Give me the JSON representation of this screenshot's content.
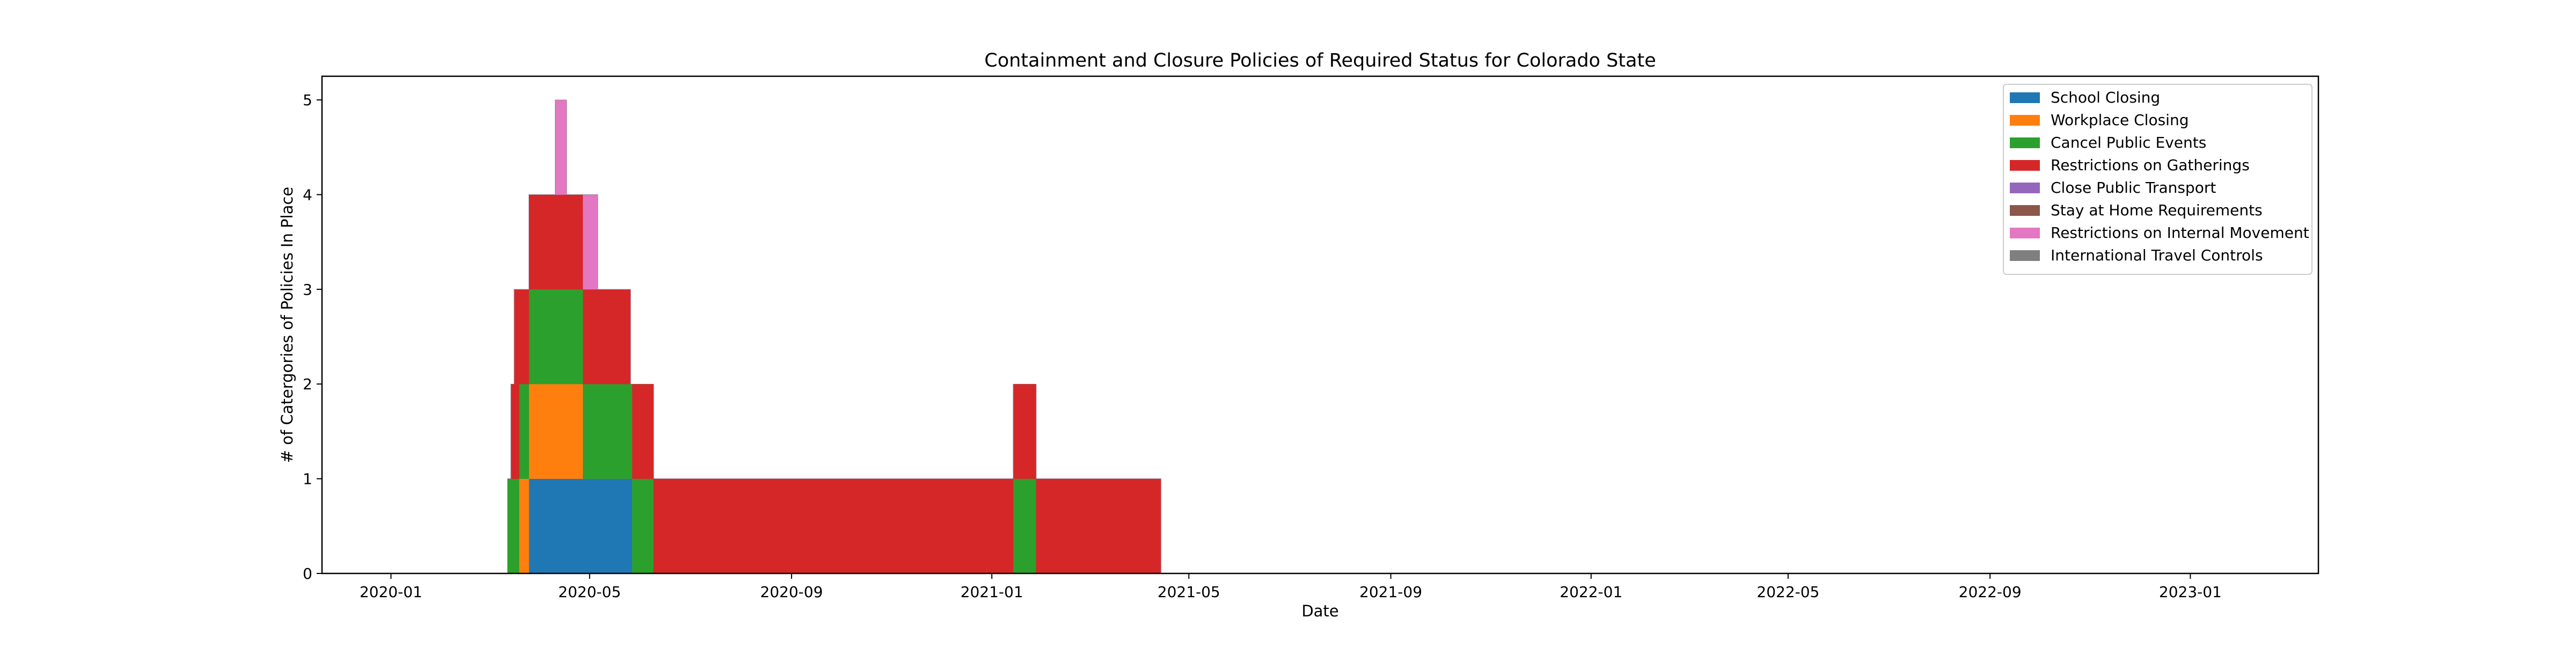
{
  "chart_data": {
    "type": "area",
    "stacked": true,
    "step": true,
    "title": "Containment and Closure Policies of Required Status for Colorado State",
    "xlabel": "Date",
    "ylabel": "# of Catergories of Policies In Place",
    "xlim": [
      "2019-11-20",
      "2023-03-20"
    ],
    "ylim": [
      0,
      5.25
    ],
    "x_ticks": [
      "2020-01",
      "2020-05",
      "2020-09",
      "2021-01",
      "2021-05",
      "2021-09",
      "2022-01",
      "2022-05",
      "2022-09",
      "2023-01"
    ],
    "y_ticks": [
      0,
      1,
      2,
      3,
      4,
      5
    ],
    "grid": false,
    "legend_position": "top-right",
    "x": [
      "2020-03-12",
      "2020-03-14",
      "2020-03-16",
      "2020-03-19",
      "2020-03-25",
      "2020-04-10",
      "2020-04-17",
      "2020-04-27",
      "2020-05-06",
      "2020-05-26",
      "2020-05-27",
      "2020-06-09",
      "2020-06-16",
      "2021-01-14",
      "2021-01-28",
      "2021-04-14",
      "2023-03-20"
    ],
    "series": [
      {
        "name": "School Closing",
        "color": "#1f77b4",
        "values": [
          0,
          0,
          0,
          0,
          1,
          1,
          1,
          1,
          1,
          1,
          0,
          0,
          0,
          0,
          0,
          0,
          0
        ]
      },
      {
        "name": "Workplace Closing",
        "color": "#ff7f0e",
        "values": [
          0,
          0,
          0,
          1,
          1,
          1,
          1,
          0,
          0,
          0,
          0,
          0,
          0,
          0,
          0,
          0,
          0
        ]
      },
      {
        "name": "Cancel Public Events",
        "color": "#2ca02c",
        "values": [
          1,
          1,
          1,
          1,
          1,
          1,
          1,
          1,
          1,
          1,
          1,
          0,
          0,
          1,
          0,
          0,
          0
        ]
      },
      {
        "name": "Restrictions on Gatherings",
        "color": "#d62728",
        "values": [
          0,
          1,
          2,
          1,
          1,
          1,
          1,
          1,
          1,
          0,
          1,
          1,
          1,
          1,
          1,
          0,
          0
        ]
      },
      {
        "name": "Close Public Transport",
        "color": "#9467bd",
        "values": [
          0,
          0,
          0,
          0,
          0,
          0,
          0,
          0,
          0,
          0,
          0,
          0,
          0,
          0,
          0,
          0,
          0
        ]
      },
      {
        "name": "Stay at Home Requirements",
        "color": "#8c564b",
        "values": [
          0,
          0,
          0,
          0,
          0,
          0,
          0,
          0,
          0,
          0,
          0,
          0,
          0,
          0,
          0,
          0,
          0
        ]
      },
      {
        "name": "Restrictions on Internal Movement",
        "color": "#e377c2",
        "values": [
          0,
          0,
          0,
          0,
          0,
          1,
          0,
          1,
          0,
          0,
          0,
          0,
          0,
          0,
          0,
          0,
          0
        ]
      },
      {
        "name": "International Travel Controls",
        "color": "#7f7f7f",
        "values": [
          0,
          0,
          0,
          0,
          0,
          0,
          0,
          0,
          0,
          0,
          0,
          0,
          0,
          0,
          0,
          0,
          0
        ]
      }
    ]
  }
}
